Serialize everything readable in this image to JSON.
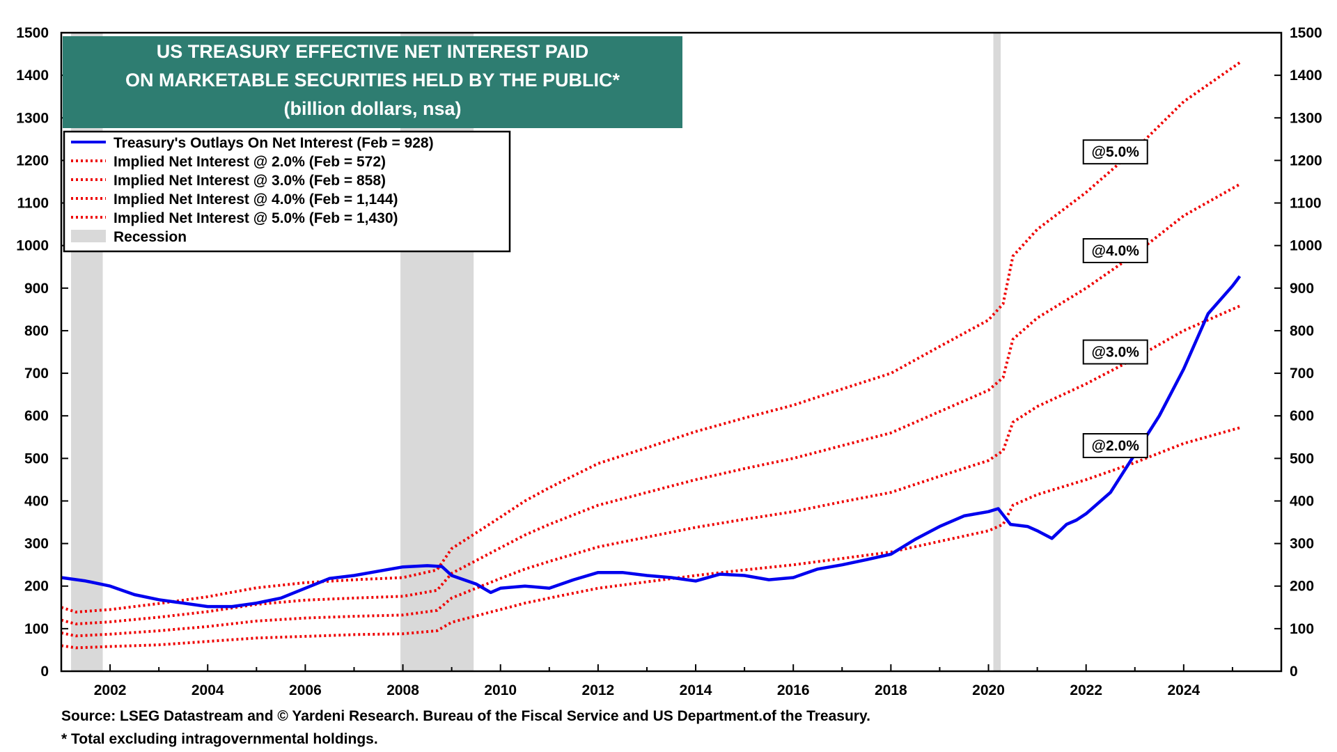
{
  "chart_data": {
    "type": "line",
    "title_lines": [
      "US TREASURY EFFECTIVE NET INTEREST PAID",
      "ON MARKETABLE SECURITIES HELD BY THE PUBLIC*",
      "(billion dollars, nsa)"
    ],
    "xlim": [
      2001.0,
      2026.0
    ],
    "ylim": [
      0,
      1500
    ],
    "x_ticks": [
      2002,
      2004,
      2006,
      2008,
      2010,
      2012,
      2014,
      2016,
      2018,
      2020,
      2022,
      2024
    ],
    "x_tick_labels": [
      "2002",
      "2004",
      "2006",
      "2008",
      "2010",
      "2012",
      "2014",
      "2016",
      "2018",
      "2020",
      "2022",
      "2024"
    ],
    "y_ticks": [
      0,
      100,
      200,
      300,
      400,
      500,
      600,
      700,
      800,
      900,
      1000,
      1100,
      1200,
      1300,
      1400,
      1500
    ],
    "y_tick_labels": [
      "0",
      "100",
      "200",
      "300",
      "400",
      "500",
      "600",
      "700",
      "800",
      "900",
      "1000",
      "1100",
      "1200",
      "1300",
      "1400",
      "1500"
    ],
    "recessions": [
      [
        2001.2,
        2001.85
      ],
      [
        2007.95,
        2009.45
      ],
      [
        2020.1,
        2020.25
      ]
    ],
    "legend": [
      {
        "label": "Treasury's Outlays On Net Interest (Feb = 928)",
        "style": "solid",
        "color": "#0000ee"
      },
      {
        "label": "Implied Net Interest @ 2.0% (Feb = 572)",
        "style": "dotted",
        "color": "#ee0000"
      },
      {
        "label": "Implied Net Interest @ 3.0% (Feb = 858)",
        "style": "dotted",
        "color": "#ee0000"
      },
      {
        "label": "Implied Net Interest @ 4.0% (Feb = 1,144)",
        "style": "dotted",
        "color": "#ee0000"
      },
      {
        "label": "Implied Net Interest @ 5.0% (Feb = 1,430)",
        "style": "dotted",
        "color": "#ee0000"
      },
      {
        "label": "Recession",
        "style": "box",
        "color": "#d9d9d9"
      }
    ],
    "annotations": [
      {
        "text": "@5.0%",
        "x": 2022.6,
        "y": 1220
      },
      {
        "text": "@4.0%",
        "x": 2022.6,
        "y": 988
      },
      {
        "text": "@3.0%",
        "x": 2022.6,
        "y": 750
      },
      {
        "text": "@2.0%",
        "x": 2022.6,
        "y": 530
      }
    ],
    "series": [
      {
        "name": "Treasury's Outlays On Net Interest",
        "color": "#0000ee",
        "style": "solid",
        "points": [
          [
            2001.0,
            220
          ],
          [
            2001.5,
            212
          ],
          [
            2002.0,
            200
          ],
          [
            2002.5,
            180
          ],
          [
            2003.0,
            168
          ],
          [
            2003.5,
            160
          ],
          [
            2004.0,
            152
          ],
          [
            2004.5,
            152
          ],
          [
            2005.0,
            160
          ],
          [
            2005.5,
            172
          ],
          [
            2006.0,
            195
          ],
          [
            2006.5,
            218
          ],
          [
            2007.0,
            225
          ],
          [
            2007.5,
            235
          ],
          [
            2008.0,
            245
          ],
          [
            2008.5,
            248
          ],
          [
            2008.8,
            246
          ],
          [
            2009.0,
            225
          ],
          [
            2009.5,
            205
          ],
          [
            2009.8,
            185
          ],
          [
            2010.0,
            195
          ],
          [
            2010.5,
            200
          ],
          [
            2011.0,
            195
          ],
          [
            2011.5,
            215
          ],
          [
            2012.0,
            232
          ],
          [
            2012.5,
            232
          ],
          [
            2013.0,
            225
          ],
          [
            2013.5,
            220
          ],
          [
            2014.0,
            212
          ],
          [
            2014.5,
            228
          ],
          [
            2015.0,
            225
          ],
          [
            2015.5,
            215
          ],
          [
            2016.0,
            220
          ],
          [
            2016.5,
            240
          ],
          [
            2017.0,
            250
          ],
          [
            2017.5,
            262
          ],
          [
            2018.0,
            275
          ],
          [
            2018.5,
            310
          ],
          [
            2019.0,
            340
          ],
          [
            2019.5,
            365
          ],
          [
            2020.0,
            375
          ],
          [
            2020.2,
            382
          ],
          [
            2020.45,
            345
          ],
          [
            2020.8,
            340
          ],
          [
            2021.0,
            330
          ],
          [
            2021.3,
            312
          ],
          [
            2021.6,
            345
          ],
          [
            2021.8,
            355
          ],
          [
            2022.0,
            370
          ],
          [
            2022.5,
            420
          ],
          [
            2023.0,
            510
          ],
          [
            2023.5,
            600
          ],
          [
            2024.0,
            710
          ],
          [
            2024.5,
            840
          ],
          [
            2025.0,
            905
          ],
          [
            2025.15,
            928
          ]
        ]
      },
      {
        "name": "Implied Net Interest @ 2.0%",
        "color": "#ee0000",
        "style": "dotted",
        "points": [
          [
            2001.0,
            60
          ],
          [
            2001.3,
            55
          ],
          [
            2002.0,
            58
          ],
          [
            2003.0,
            62
          ],
          [
            2004.0,
            70
          ],
          [
            2005.0,
            78
          ],
          [
            2006.0,
            82
          ],
          [
            2007.0,
            86
          ],
          [
            2008.0,
            88
          ],
          [
            2008.7,
            95
          ],
          [
            2009.0,
            115
          ],
          [
            2009.5,
            130
          ],
          [
            2010.0,
            145
          ],
          [
            2010.5,
            160
          ],
          [
            2011.0,
            172
          ],
          [
            2012.0,
            195
          ],
          [
            2013.0,
            210
          ],
          [
            2014.0,
            225
          ],
          [
            2015.0,
            238
          ],
          [
            2016.0,
            250
          ],
          [
            2017.0,
            265
          ],
          [
            2018.0,
            280
          ],
          [
            2019.0,
            305
          ],
          [
            2020.0,
            330
          ],
          [
            2020.3,
            345
          ],
          [
            2020.5,
            390
          ],
          [
            2021.0,
            415
          ],
          [
            2022.0,
            450
          ],
          [
            2023.0,
            490
          ],
          [
            2024.0,
            535
          ],
          [
            2025.15,
            572
          ]
        ]
      },
      {
        "name": "Implied Net Interest @ 3.0%",
        "color": "#ee0000",
        "style": "dotted",
        "points": [
          [
            2001.0,
            90
          ],
          [
            2001.3,
            83
          ],
          [
            2002.0,
            87
          ],
          [
            2003.0,
            95
          ],
          [
            2004.0,
            105
          ],
          [
            2005.0,
            118
          ],
          [
            2006.0,
            125
          ],
          [
            2007.0,
            129
          ],
          [
            2008.0,
            132
          ],
          [
            2008.7,
            143
          ],
          [
            2009.0,
            172
          ],
          [
            2009.5,
            195
          ],
          [
            2010.0,
            218
          ],
          [
            2010.5,
            240
          ],
          [
            2011.0,
            258
          ],
          [
            2012.0,
            292
          ],
          [
            2013.0,
            315
          ],
          [
            2014.0,
            338
          ],
          [
            2015.0,
            357
          ],
          [
            2016.0,
            375
          ],
          [
            2017.0,
            398
          ],
          [
            2018.0,
            420
          ],
          [
            2019.0,
            458
          ],
          [
            2020.0,
            495
          ],
          [
            2020.3,
            518
          ],
          [
            2020.5,
            585
          ],
          [
            2021.0,
            622
          ],
          [
            2022.0,
            675
          ],
          [
            2023.0,
            735
          ],
          [
            2024.0,
            800
          ],
          [
            2025.15,
            858
          ]
        ]
      },
      {
        "name": "Implied Net Interest @ 4.0%",
        "color": "#ee0000",
        "style": "dotted",
        "points": [
          [
            2001.0,
            120
          ],
          [
            2001.3,
            111
          ],
          [
            2002.0,
            116
          ],
          [
            2003.0,
            127
          ],
          [
            2004.0,
            140
          ],
          [
            2005.0,
            157
          ],
          [
            2006.0,
            167
          ],
          [
            2007.0,
            172
          ],
          [
            2008.0,
            176
          ],
          [
            2008.7,
            190
          ],
          [
            2009.0,
            230
          ],
          [
            2009.5,
            260
          ],
          [
            2010.0,
            290
          ],
          [
            2010.5,
            320
          ],
          [
            2011.0,
            345
          ],
          [
            2012.0,
            390
          ],
          [
            2013.0,
            420
          ],
          [
            2014.0,
            450
          ],
          [
            2015.0,
            476
          ],
          [
            2016.0,
            500
          ],
          [
            2017.0,
            530
          ],
          [
            2018.0,
            560
          ],
          [
            2019.0,
            610
          ],
          [
            2020.0,
            660
          ],
          [
            2020.3,
            690
          ],
          [
            2020.5,
            780
          ],
          [
            2021.0,
            830
          ],
          [
            2022.0,
            900
          ],
          [
            2023.0,
            980
          ],
          [
            2024.0,
            1070
          ],
          [
            2025.15,
            1144
          ]
        ]
      },
      {
        "name": "Implied Net Interest @ 5.0%",
        "color": "#ee0000",
        "style": "dotted",
        "points": [
          [
            2001.0,
            150
          ],
          [
            2001.3,
            139
          ],
          [
            2002.0,
            145
          ],
          [
            2003.0,
            159
          ],
          [
            2004.0,
            175
          ],
          [
            2005.0,
            196
          ],
          [
            2006.0,
            208
          ],
          [
            2007.0,
            215
          ],
          [
            2008.0,
            220
          ],
          [
            2008.7,
            238
          ],
          [
            2009.0,
            288
          ],
          [
            2009.5,
            325
          ],
          [
            2010.0,
            362
          ],
          [
            2010.5,
            400
          ],
          [
            2011.0,
            431
          ],
          [
            2012.0,
            488
          ],
          [
            2013.0,
            525
          ],
          [
            2014.0,
            563
          ],
          [
            2015.0,
            595
          ],
          [
            2016.0,
            625
          ],
          [
            2017.0,
            663
          ],
          [
            2018.0,
            700
          ],
          [
            2019.0,
            763
          ],
          [
            2020.0,
            825
          ],
          [
            2020.3,
            863
          ],
          [
            2020.5,
            975
          ],
          [
            2021.0,
            1038
          ],
          [
            2022.0,
            1125
          ],
          [
            2023.0,
            1225
          ],
          [
            2024.0,
            1338
          ],
          [
            2025.15,
            1430
          ]
        ]
      }
    ]
  },
  "footer": {
    "source": "Source: LSEG Datastream and © Yardeni Research. Bureau of the Fiscal Service and US Department.of the Treasury.",
    "note": "* Total excluding intragovernmental holdings."
  }
}
